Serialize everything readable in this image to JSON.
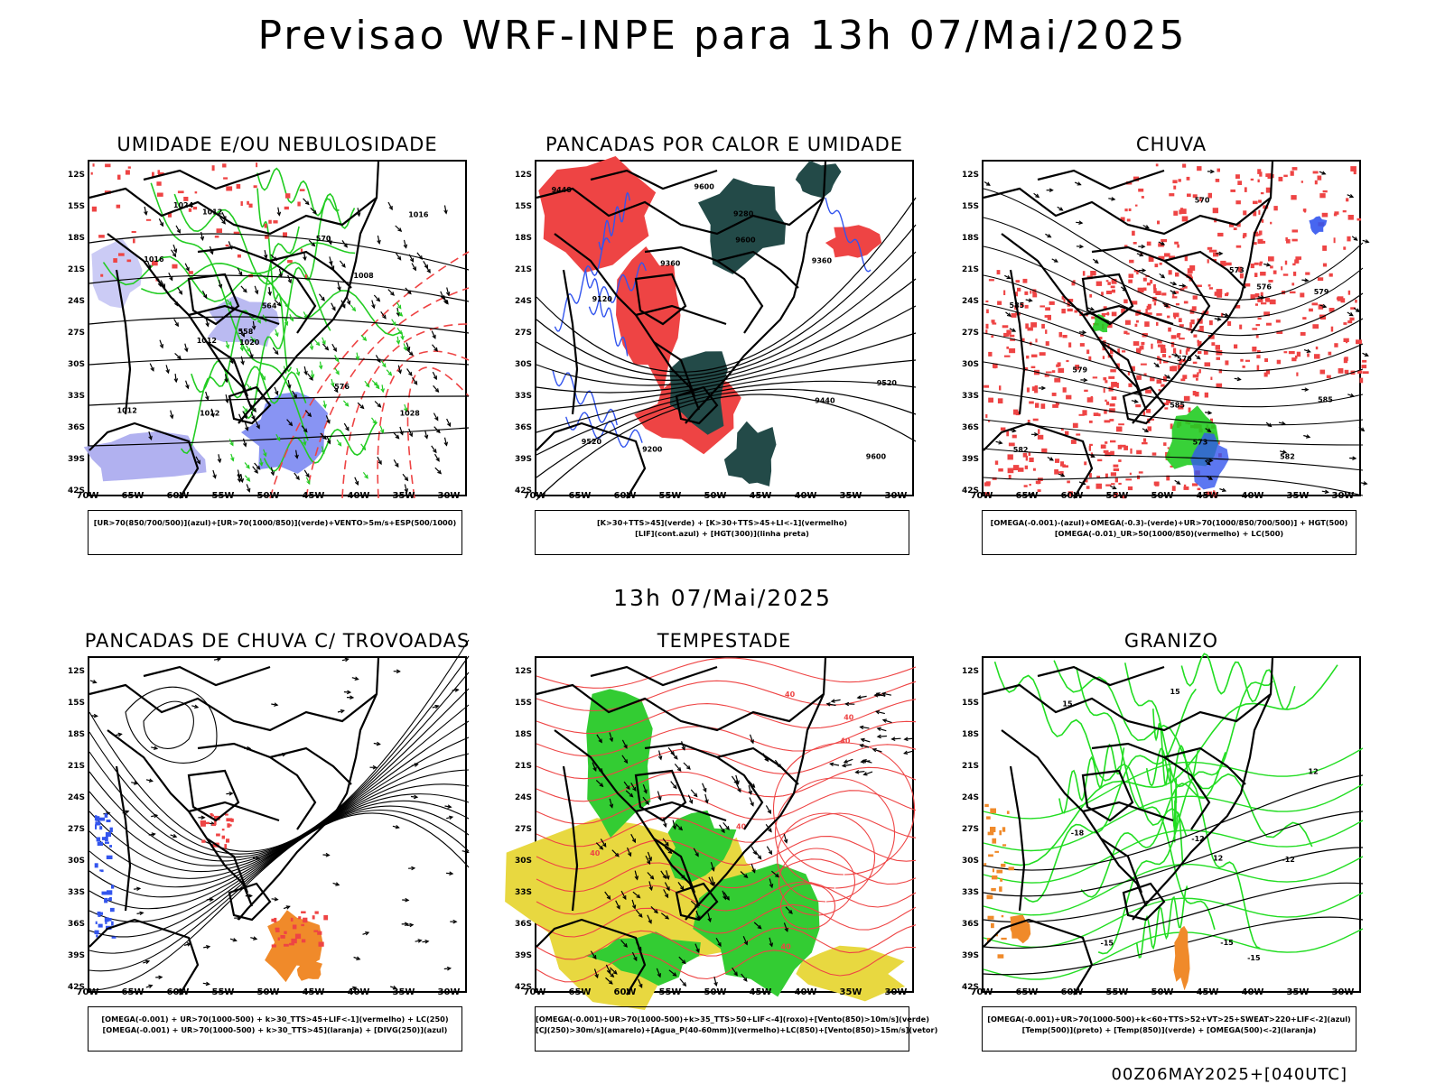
{
  "page": {
    "title": "Previsao WRF-INPE  para 13h 07/Mai/2025",
    "middle_title": "13h 07/Mai/2025",
    "run_label": "00Z06MAY2025+[040UTC]"
  },
  "axes": {
    "lat_labels": [
      "12S",
      "15S",
      "18S",
      "21S",
      "24S",
      "27S",
      "30S",
      "33S",
      "36S",
      "39S",
      "42S"
    ],
    "lon_labels": [
      "70W",
      "65W",
      "60W",
      "55W",
      "50W",
      "45W",
      "40W",
      "35W",
      "30W"
    ]
  },
  "colors": {
    "green": "#22cc22",
    "red": "#ee4444",
    "blue": "#3355ee",
    "lavender": "#a9a9ee",
    "darkteal": "#234a48",
    "yellow": "#e8d840",
    "orange": "#f08a2a",
    "black": "#000000"
  },
  "panels": [
    {
      "id": "umidade",
      "title": "UMIDADE E/OU NEBULOSIDADE",
      "legend": [
        "[UR>70(850/700/500)](azul)+[UR>70(1000/850)](verde)+VENTO>5m/s+ESP(500/1000)"
      ],
      "contour_labels": [
        "1012",
        "1012",
        "1016",
        "1016",
        "1020",
        "1024",
        "1028",
        "1008",
        "1012",
        "1012",
        "570",
        "576",
        "564",
        "558"
      ]
    },
    {
      "id": "pancadas-calor",
      "title": "PANCADAS POR CALOR E UMIDADE",
      "legend": [
        "[K>30+TTS>45](verde) + [K>30+TTS>45+LI<-1](vermelho)",
        "[LIF](cont.azul) + [HGT(300)](linha preta)"
      ],
      "contour_labels": [
        "9600",
        "9600",
        "9520",
        "9440",
        "9360",
        "9280",
        "9200",
        "9120",
        "9600",
        "9520",
        "9440",
        "9360"
      ]
    },
    {
      "id": "chuva",
      "title": "CHUVA",
      "legend": [
        "[OMEGA(-0.001)-(azul)+OMEGA(-0.3)-(verde)+UR>70(1000/850/700/500)] + HGT(500)",
        "[OMEGA(-0.01)_UR>50(1000/850)(vermelho) + LC(500)"
      ],
      "contour_labels": [
        "585",
        "585",
        "582",
        "579",
        "576",
        "573",
        "570",
        "573",
        "576",
        "579",
        "582",
        "585"
      ]
    },
    {
      "id": "pancadas-trovoadas",
      "title": "PANCADAS DE CHUVA C/ TROVOADAS",
      "legend": [
        "[OMEGA(-0.001) + UR>70(1000-500) + k>30_TTS>45+LIF<-1](vermelho) + LC(250)",
        "[OMEGA(-0.001) + UR>70(1000-500) + k>30_TTS>45](laranja) + [DIVG(250)](azul)"
      ],
      "contour_labels": []
    },
    {
      "id": "tempestade",
      "title": "TEMPESTADE",
      "legend": [
        "[OMEGA(-0.001)+UR>70(1000-500)+k>35_TTS>50+LIF<-4](roxo)+[Vento(850)>10m/s](verde)",
        "[CJ(250)>30m/s](amarelo)+[Agua_P(40-60mm)](vermelho)+LC(850)+[Vento(850)>15m/s](vetor)"
      ],
      "contour_labels": [
        "40",
        "40",
        "40",
        "40",
        "40",
        "40"
      ]
    },
    {
      "id": "granizo",
      "title": "GRANIZO",
      "legend": [
        "[OMEGA(-0.001)+UR>70(1000-500)+k<60+TTS>52+VT>25+SWEAT>220+LIF<-2](azul)",
        "[Temp(500)](preto) + [Temp(850)](verde) + [OMEGA(500)<-2](laranja)"
      ],
      "contour_labels": [
        "-12",
        "-12",
        "-15",
        "-15",
        "-18",
        "-15",
        "12",
        "15",
        "12",
        "15"
      ]
    }
  ]
}
